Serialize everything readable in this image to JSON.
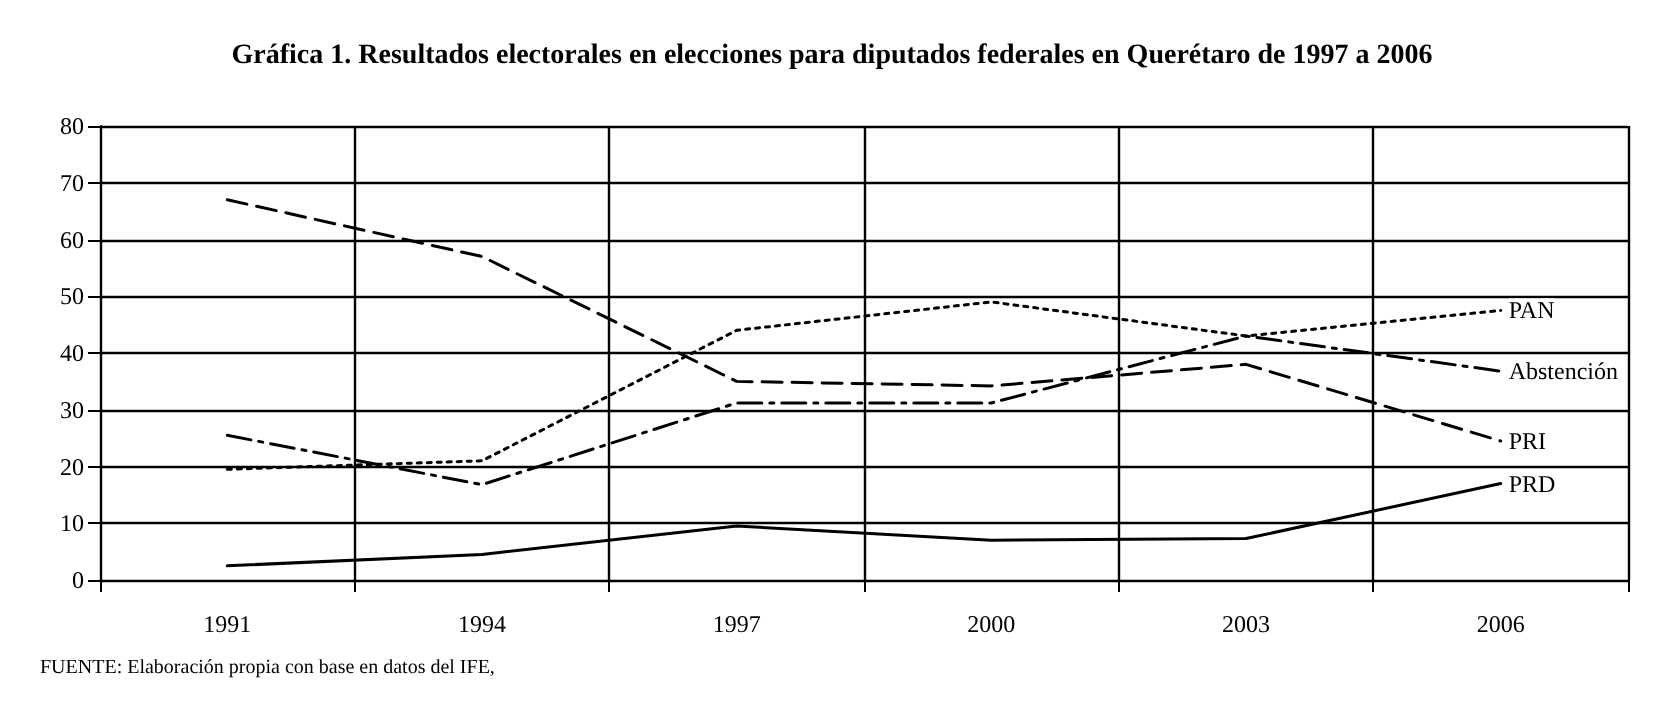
{
  "chart_data": {
    "type": "line",
    "title": "Gráfica 1. Resultados electorales en elecciones para diputados federales en Querétaro de 1997 a 2006",
    "categories": [
      "1991",
      "1994",
      "1997",
      "2000",
      "2003",
      "2006"
    ],
    "series": [
      {
        "name": "PAN",
        "color": "#000000",
        "line_style": "dotted",
        "values": [
          19.5,
          21,
          44,
          49,
          43,
          47.5
        ]
      },
      {
        "name": "Abstención",
        "color": "#000000",
        "line_style": "dashdot",
        "values": [
          25.5,
          16.8,
          31.2,
          31.2,
          43,
          36.8
        ]
      },
      {
        "name": "PRI",
        "color": "#000000",
        "line_style": "dashed",
        "values": [
          67,
          57,
          35,
          34.2,
          38,
          24.5
        ]
      },
      {
        "name": "PRD",
        "color": "#000000",
        "line_style": "solid",
        "values": [
          2.5,
          4.5,
          9.5,
          7,
          7.3,
          17
        ]
      }
    ],
    "ylim": [
      0,
      80
    ],
    "yticks": [
      0,
      10,
      20,
      30,
      40,
      50,
      60,
      70,
      80
    ],
    "grid": true,
    "legend": false,
    "marker": "none",
    "annotations": [
      "FUENTE: Elaboración propia con base en datos del IFE,"
    ]
  }
}
